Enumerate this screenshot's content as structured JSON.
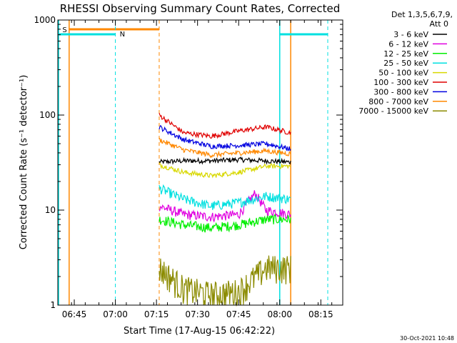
{
  "chart_data": {
    "type": "line",
    "title": "RHESSI Observing Summary Count Rates, Corrected",
    "xlabel": "Start Time (17-Aug-15 06:42:22)",
    "ylabel": "Corrected Count Rate (s⁻¹ detector⁻¹)",
    "yscale": "log",
    "ylim": [
      1,
      1000
    ],
    "xlim_minutes": [
      "06:39",
      "08:23"
    ],
    "x_ticks": [
      "06:45",
      "07:00",
      "07:15",
      "07:30",
      "07:45",
      "08:00",
      "08:15"
    ],
    "y_ticks": [
      "1",
      "10",
      "100",
      "1000"
    ],
    "legend_header": [
      "Det 1,3,5,6,7,9,",
      "Att 0"
    ],
    "legend_position": "right",
    "footer_date": "30-Oct-2021 10:48",
    "series": [
      {
        "name": "3 - 6 keV",
        "color": "#000000",
        "x": [
          "07:16",
          "07:25",
          "07:35",
          "07:45",
          "07:55",
          "08:04"
        ],
        "values": [
          32,
          33,
          33,
          34,
          33,
          32
        ]
      },
      {
        "name": "6 - 12 keV",
        "color": "#e000e0",
        "x": [
          "07:16",
          "07:25",
          "07:35",
          "07:45",
          "07:51",
          "07:55",
          "08:04"
        ],
        "values": [
          11,
          9,
          8.5,
          9,
          15,
          10,
          9
        ]
      },
      {
        "name": "12 - 25 keV",
        "color": "#00ee00",
        "x": [
          "07:16",
          "07:25",
          "07:35",
          "07:45",
          "07:55",
          "08:04"
        ],
        "values": [
          8,
          7,
          6.5,
          7,
          8,
          8
        ]
      },
      {
        "name": "25 - 50 keV",
        "color": "#00e0e0",
        "x": [
          "07:16",
          "07:25",
          "07:35",
          "07:45",
          "07:55",
          "08:04"
        ],
        "values": [
          17,
          13,
          11,
          12,
          14,
          13
        ]
      },
      {
        "name": "50 - 100 keV",
        "color": "#d8d800",
        "x": [
          "07:16",
          "07:25",
          "07:35",
          "07:45",
          "07:55",
          "08:04"
        ],
        "values": [
          30,
          25,
          23,
          25,
          29,
          29
        ]
      },
      {
        "name": "100 - 300 keV",
        "color": "#e00000",
        "x": [
          "07:16",
          "07:25",
          "07:35",
          "07:45",
          "07:55",
          "08:04"
        ],
        "values": [
          100,
          65,
          60,
          68,
          75,
          65
        ]
      },
      {
        "name": "300 - 800 keV",
        "color": "#0000e0",
        "x": [
          "07:16",
          "07:25",
          "07:35",
          "07:45",
          "07:55",
          "08:04"
        ],
        "values": [
          75,
          55,
          47,
          48,
          50,
          44
        ]
      },
      {
        "name": "800 - 7000 keV",
        "color": "#ff8800",
        "x": [
          "07:16",
          "07:25",
          "07:35",
          "07:45",
          "07:55",
          "08:04"
        ],
        "values": [
          55,
          43,
          38,
          40,
          42,
          39
        ]
      },
      {
        "name": "7000 - 15000 keV",
        "color": "#8b8b00",
        "x": [
          "07:16",
          "07:25",
          "07:35",
          "07:45",
          "07:55",
          "08:04"
        ],
        "values": [
          2.5,
          1.5,
          1.3,
          1.4,
          2.5,
          2.5
        ]
      }
    ],
    "annotations": [
      {
        "label": "S",
        "color": "#ff8800"
      },
      {
        "label": "N",
        "color": "#00e0e0"
      }
    ]
  }
}
